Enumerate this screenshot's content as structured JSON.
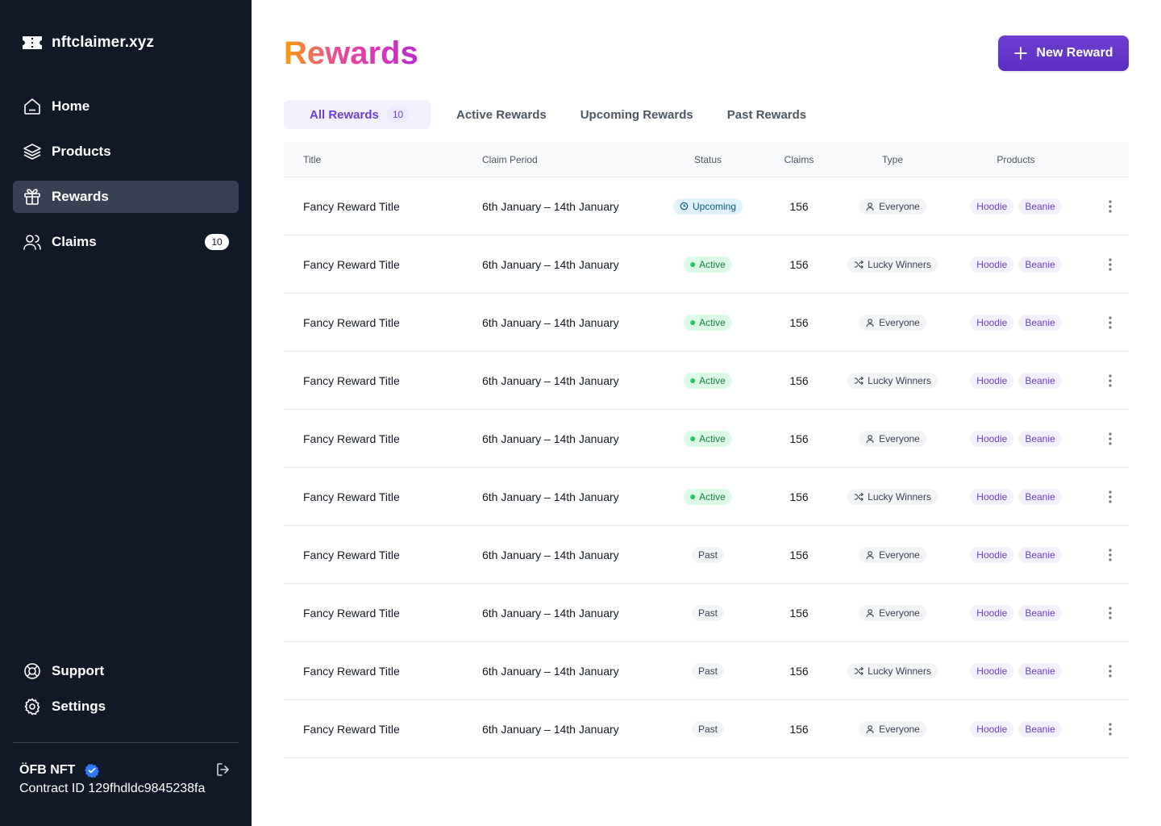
{
  "brand": {
    "name": "nftclaimer.xyz",
    "logo_icon": "ticket-icon"
  },
  "sidebar": {
    "items": [
      {
        "label": "Home",
        "icon": "home-icon"
      },
      {
        "label": "Products",
        "icon": "layers-icon"
      },
      {
        "label": "Rewards",
        "icon": "gift-icon",
        "active": true
      },
      {
        "label": "Claims",
        "icon": "users-icon",
        "count": "10"
      }
    ],
    "bottom_items": [
      {
        "label": "Support",
        "icon": "lifebuoy-icon"
      },
      {
        "label": "Settings",
        "icon": "gear-icon"
      }
    ],
    "account": {
      "name": "ÖFB NFT",
      "verified": true,
      "contract": "Contract ID 129fhdldc9845238fa"
    }
  },
  "header": {
    "title": "Rewards",
    "new_button_label": "New Reward"
  },
  "tabs": [
    {
      "label": "All Rewards",
      "count": "10",
      "active": true
    },
    {
      "label": "Active Rewards"
    },
    {
      "label": "Upcoming Rewards"
    },
    {
      "label": "Past Rewards"
    }
  ],
  "table": {
    "columns": [
      "Title",
      "Claim Period",
      "Status",
      "Claims",
      "Type",
      "Products"
    ],
    "rows": [
      {
        "title": "Fancy Reward Title",
        "period": "6th January – 14th January",
        "status": "Upcoming",
        "claims": "156",
        "type": "Everyone",
        "products": [
          "Hoodie",
          "Beanie"
        ]
      },
      {
        "title": "Fancy Reward Title",
        "period": "6th January – 14th January",
        "status": "Active",
        "claims": "156",
        "type": "Lucky Winners",
        "products": [
          "Hoodie",
          "Beanie"
        ]
      },
      {
        "title": "Fancy Reward Title",
        "period": "6th January – 14th January",
        "status": "Active",
        "claims": "156",
        "type": "Everyone",
        "products": [
          "Hoodie",
          "Beanie"
        ]
      },
      {
        "title": "Fancy Reward Title",
        "period": "6th January – 14th January",
        "status": "Active",
        "claims": "156",
        "type": "Lucky Winners",
        "products": [
          "Hoodie",
          "Beanie"
        ]
      },
      {
        "title": "Fancy Reward Title",
        "period": "6th January – 14th January",
        "status": "Active",
        "claims": "156",
        "type": "Everyone",
        "products": [
          "Hoodie",
          "Beanie"
        ]
      },
      {
        "title": "Fancy Reward Title",
        "period": "6th January – 14th January",
        "status": "Active",
        "claims": "156",
        "type": "Lucky Winners",
        "products": [
          "Hoodie",
          "Beanie"
        ]
      },
      {
        "title": "Fancy Reward Title",
        "period": "6th January – 14th January",
        "status": "Past",
        "claims": "156",
        "type": "Everyone",
        "products": [
          "Hoodie",
          "Beanie"
        ]
      },
      {
        "title": "Fancy Reward Title",
        "period": "6th January – 14th January",
        "status": "Past",
        "claims": "156",
        "type": "Everyone",
        "products": [
          "Hoodie",
          "Beanie"
        ]
      },
      {
        "title": "Fancy Reward Title",
        "period": "6th January – 14th January",
        "status": "Past",
        "claims": "156",
        "type": "Lucky Winners",
        "products": [
          "Hoodie",
          "Beanie"
        ]
      },
      {
        "title": "Fancy Reward Title",
        "period": "6th January – 14th January",
        "status": "Past",
        "claims": "156",
        "type": "Everyone",
        "products": [
          "Hoodie",
          "Beanie"
        ]
      }
    ]
  },
  "colors": {
    "sidebar_bg": "#111827",
    "accent": "#6d3fd0",
    "active_green": "#15803d",
    "upcoming_blue": "#075985"
  }
}
